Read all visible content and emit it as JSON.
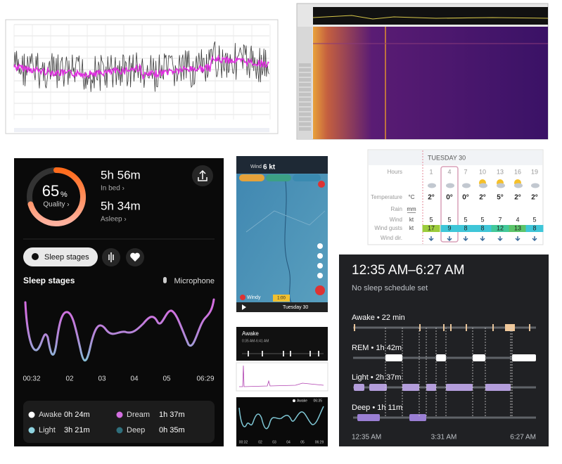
{
  "sleep_app": {
    "quality_value": "65",
    "quality_unit": "%",
    "quality_label": "Quality ›",
    "in_bed": "5h 56m",
    "in_bed_label": "In bed ›",
    "asleep": "5h 34m",
    "asleep_label": "Asleep ›",
    "tab": "Sleep stages",
    "section_title": "Sleep stages",
    "microphone": "Microphone",
    "time_labels": [
      "00:32",
      "02",
      "03",
      "04",
      "05",
      "06:29"
    ],
    "legend": [
      {
        "name": "Awake",
        "value": "0h 24m",
        "color": "#ffffff"
      },
      {
        "name": "Dream",
        "value": "1h 37m",
        "color": "#d36ee0"
      },
      {
        "name": "Light",
        "value": "3h 21m",
        "color": "#8fd3e0"
      },
      {
        "name": "Deep",
        "value": "0h 35m",
        "color": "#2f6f7c"
      }
    ]
  },
  "windy": {
    "label": "Wind",
    "speed": "6 kt",
    "day": "Tuesday 30",
    "brand": "Windy",
    "time": "1:00"
  },
  "forecast": {
    "day": "TUESDAY 30",
    "rows": [
      {
        "label": "Hours",
        "values": [
          1,
          4,
          7,
          10,
          13,
          16,
          19
        ]
      },
      {
        "label": "Temperature",
        "unit": "°C",
        "values": [
          "2°",
          "0°",
          "0°",
          "2°",
          "5°",
          "2°",
          "2°"
        ]
      },
      {
        "label": "Rain",
        "unit": "mm"
      },
      {
        "label": "Wind",
        "unit": "kt",
        "values": [
          5,
          5,
          5,
          5,
          7,
          4,
          5
        ]
      },
      {
        "label": "Wind gusts",
        "unit": "kt",
        "values": [
          17,
          9,
          8,
          8,
          12,
          13,
          8
        ],
        "colors": [
          "#9ccc3c",
          "#3fc6d8",
          "#3fc6d8",
          "#3fc6d8",
          "#43c99a",
          "#5cc46a",
          "#3fc6d8"
        ]
      },
      {
        "label": "Wind dir."
      }
    ]
  },
  "mini": {
    "title": "Awake",
    "range": "0:35 AM-6:41 AM",
    "legend": "Awake",
    "legend_time": "06:35",
    "chart_labels": [
      "00:32",
      "02",
      "03",
      "04",
      "05",
      "06:29"
    ]
  },
  "fit": {
    "range": "12:35 AM–6:27 AM",
    "schedule": "No sleep schedule set",
    "stages": [
      "Awake • 22 min",
      "REM • 1h 42m",
      "Light • 2h 37m",
      "Deep • 1h 11m"
    ],
    "axis": [
      "12:35 AM",
      "3:31 AM",
      "6:27 AM"
    ]
  }
}
